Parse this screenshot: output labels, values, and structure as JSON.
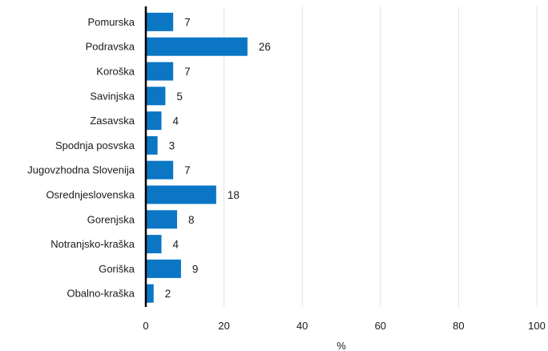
{
  "chart_data": {
    "type": "bar",
    "orientation": "horizontal",
    "categories": [
      "Pomurska",
      "Podravska",
      "Koroška",
      "Savinjska",
      "Zasavska",
      "Spodnja posvska",
      "Jugovzhodna Slovenija",
      "Osrednjeslovenska",
      "Gorenjska",
      "Notranjsko-kraška",
      "Goriška",
      "Obalno-kraška"
    ],
    "values": [
      7,
      26,
      7,
      5,
      4,
      3,
      7,
      18,
      8,
      4,
      9,
      2
    ],
    "value_labels": [
      "7",
      "26",
      "7",
      "5",
      "4",
      "3",
      "7",
      "18",
      "8",
      "4",
      "9",
      "2"
    ],
    "xticks": [
      0,
      20,
      40,
      60,
      80,
      100
    ],
    "xtick_labels": [
      "0",
      "20",
      "40",
      "60",
      "80",
      "100"
    ],
    "xlim": [
      0,
      100
    ],
    "xlabel": "%",
    "grid": "vertical",
    "legend": "none",
    "colors": {
      "bar": "#0a76c4",
      "grid": "#e3e3e3",
      "axis": "#000000"
    }
  }
}
